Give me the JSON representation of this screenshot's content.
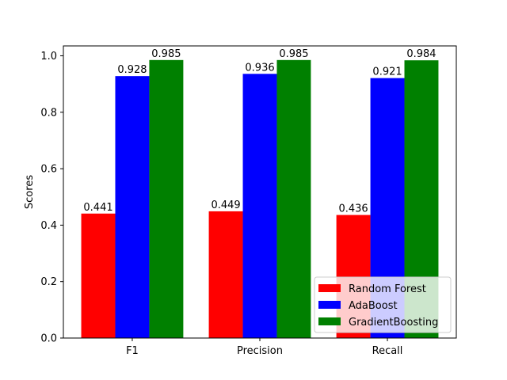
{
  "chart_data": {
    "type": "bar",
    "title": "",
    "xlabel": "",
    "ylabel": "Scores",
    "categories": [
      "F1",
      "Precision",
      "Recall"
    ],
    "series": [
      {
        "name": "Random Forest",
        "color": "#ff0000",
        "values": [
          0.441,
          0.449,
          0.436
        ],
        "labels": [
          "0.441",
          "0.449",
          "0.436"
        ]
      },
      {
        "name": "AdaBoost",
        "color": "#0000ff",
        "values": [
          0.928,
          0.936,
          0.921
        ],
        "labels": [
          "0.928",
          "0.936",
          "0.921"
        ]
      },
      {
        "name": "GradientBoosting",
        "color": "#008000",
        "values": [
          0.985,
          0.985,
          0.984
        ],
        "labels": [
          "0.985",
          "0.985",
          "0.984"
        ]
      }
    ],
    "ylim": [
      0,
      1.035
    ],
    "yticks": [
      "0.0",
      "0.2",
      "0.4",
      "0.6",
      "0.8",
      "1.0"
    ],
    "grid": false,
    "legend_position": "lower-right"
  }
}
